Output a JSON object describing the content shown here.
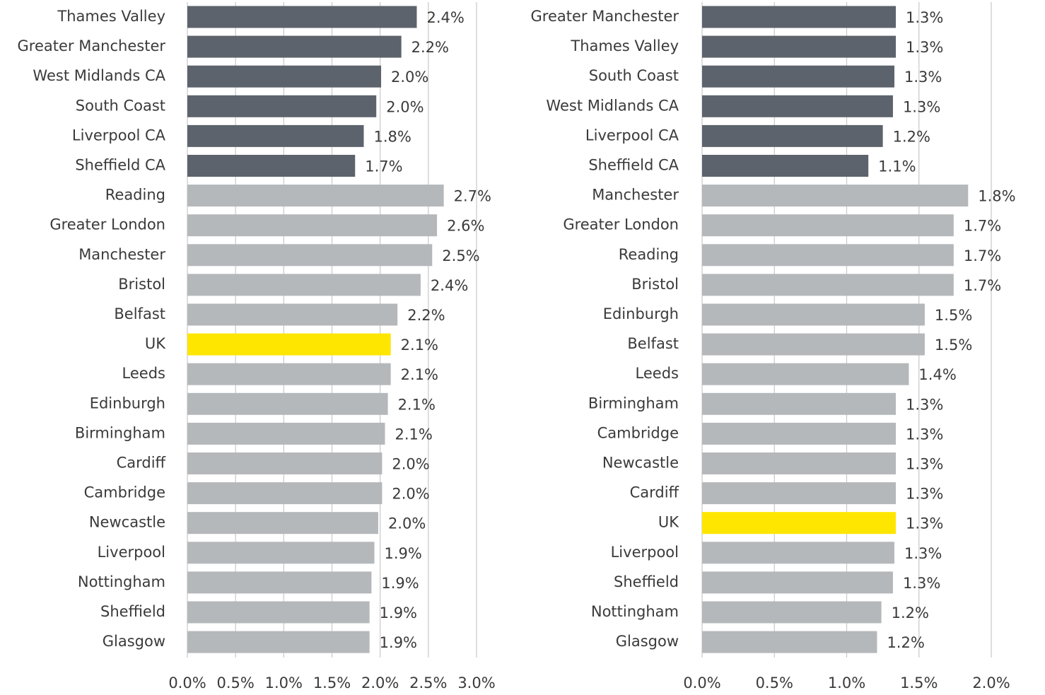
{
  "chart_data": [
    {
      "type": "bar",
      "orientation": "horizontal",
      "categories": [
        "Thames Valley",
        "Greater Manchester",
        "West Midlands CA",
        "South Coast",
        "Liverpool CA",
        "Sheffield CA",
        "Reading",
        "Greater London",
        "Manchester",
        "Bristol",
        "Belfast",
        "UK",
        "Leeds",
        "Edinburgh",
        "Birmingham",
        "Cardiff",
        "Cambridge",
        "Newcastle",
        "Liverpool",
        "Nottingham",
        "Sheffield",
        "Glasgow"
      ],
      "values": [
        2.38,
        2.22,
        2.01,
        1.96,
        1.83,
        1.74,
        2.66,
        2.59,
        2.54,
        2.42,
        2.18,
        2.11,
        2.11,
        2.08,
        2.05,
        2.02,
        2.02,
        1.98,
        1.94,
        1.91,
        1.89,
        1.89
      ],
      "value_labels": [
        "2.4%",
        "2.2%",
        "2.0%",
        "2.0%",
        "1.8%",
        "1.7%",
        "2.7%",
        "2.6%",
        "2.5%",
        "2.4%",
        "2.2%",
        "2.1%",
        "2.1%",
        "2.1%",
        "2.1%",
        "2.0%",
        "2.0%",
        "2.0%",
        "1.9%",
        "1.9%",
        "1.9%",
        "1.9%"
      ],
      "colors": [
        "#5d636c",
        "#5d636c",
        "#5d636c",
        "#5d636c",
        "#5d636c",
        "#5d636c",
        "#b5b8bb",
        "#b5b8bb",
        "#b5b8bb",
        "#b5b8bb",
        "#b5b8bb",
        "#ffe600",
        "#b5b8bb",
        "#b5b8bb",
        "#b5b8bb",
        "#b5b8bb",
        "#b5b8bb",
        "#b5b8bb",
        "#b5b8bb",
        "#b5b8bb",
        "#b5b8bb",
        "#b5b8bb"
      ],
      "xlim": [
        0,
        3.0
      ],
      "xticks": [
        {
          "value": 0,
          "label": "0.0%"
        },
        {
          "value": 0.5,
          "label": "0.5%"
        },
        {
          "value": 1.0,
          "label": "1.0%"
        },
        {
          "value": 1.5,
          "label": "1.5%"
        },
        {
          "value": 2.0,
          "label": "2.0%"
        },
        {
          "value": 2.5,
          "label": "2.5%"
        },
        {
          "value": 3.0,
          "label": "3.0%"
        }
      ],
      "grid": true
    },
    {
      "type": "bar",
      "orientation": "horizontal",
      "categories": [
        "Greater Manchester",
        "Thames Valley",
        "South Coast",
        "West Midlands CA",
        "Liverpool CA",
        "Sheffield CA",
        "Manchester",
        "Greater London",
        "Reading",
        "Bristol",
        "Edinburgh",
        "Belfast",
        "Leeds",
        "Birmingham",
        "Cambridge",
        "Newcastle",
        "Cardiff",
        "UK",
        "Liverpool",
        "Sheffield",
        "Nottingham",
        "Glasgow"
      ],
      "values": [
        1.34,
        1.34,
        1.33,
        1.32,
        1.25,
        1.15,
        1.84,
        1.74,
        1.74,
        1.74,
        1.54,
        1.54,
        1.43,
        1.34,
        1.34,
        1.34,
        1.34,
        1.34,
        1.33,
        1.32,
        1.24,
        1.21
      ],
      "value_labels": [
        "1.3%",
        "1.3%",
        "1.3%",
        "1.3%",
        "1.2%",
        "1.1%",
        "1.8%",
        "1.7%",
        "1.7%",
        "1.7%",
        "1.5%",
        "1.5%",
        "1.4%",
        "1.3%",
        "1.3%",
        "1.3%",
        "1.3%",
        "1.3%",
        "1.3%",
        "1.3%",
        "1.2%",
        "1.2%"
      ],
      "colors": [
        "#5d636c",
        "#5d636c",
        "#5d636c",
        "#5d636c",
        "#5d636c",
        "#5d636c",
        "#b5b8bb",
        "#b5b8bb",
        "#b5b8bb",
        "#b5b8bb",
        "#b5b8bb",
        "#b5b8bb",
        "#b5b8bb",
        "#b5b8bb",
        "#b5b8bb",
        "#b5b8bb",
        "#b5b8bb",
        "#ffe600",
        "#b5b8bb",
        "#b5b8bb",
        "#b5b8bb",
        "#b5b8bb"
      ],
      "xlim": [
        0,
        2.0
      ],
      "xticks": [
        {
          "value": 0,
          "label": "0.0%"
        },
        {
          "value": 0.5,
          "label": "0.5%"
        },
        {
          "value": 1.0,
          "label": "1.0%"
        },
        {
          "value": 1.5,
          "label": "1.5%"
        },
        {
          "value": 2.0,
          "label": "2.0%"
        }
      ],
      "grid": true
    }
  ]
}
